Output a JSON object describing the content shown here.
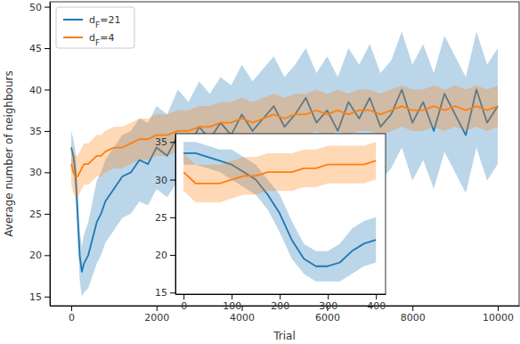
{
  "chart_data": [
    {
      "type": "line",
      "x_label": "Trial",
      "y_label": "Average number of neighbours",
      "x": [
        0,
        50,
        100,
        150,
        200,
        250,
        300,
        400,
        500,
        600,
        700,
        800,
        1000,
        1200,
        1400,
        1600,
        1800,
        2000,
        2250,
        2500,
        2750,
        3000,
        3250,
        3500,
        3750,
        4000,
        4250,
        4500,
        4750,
        5000,
        5250,
        5500,
        5750,
        6000,
        6250,
        6500,
        6750,
        7000,
        7250,
        7500,
        7750,
        8000,
        8250,
        8500,
        8750,
        9000,
        9250,
        9500,
        9750,
        10000
      ],
      "series": [
        {
          "name": "dF=21",
          "color": "#1f77b4",
          "values": [
            33,
            32,
            30,
            25,
            20,
            18,
            19,
            20,
            22,
            24,
            25,
            26.5,
            28,
            29.5,
            30,
            31.5,
            31,
            33,
            32,
            34.5,
            33,
            35.5,
            34,
            36,
            34.5,
            37,
            35,
            36.5,
            38,
            35.5,
            37,
            39,
            36,
            37.5,
            35,
            38.5,
            36.5,
            39,
            35.5,
            37,
            40,
            36,
            38.5,
            35,
            39.5,
            37,
            34.5,
            40,
            36,
            38
          ],
          "error": [
            2,
            2,
            2.5,
            3,
            3,
            3,
            3.5,
            4,
            4.5,
            5,
            5,
            5,
            5,
            5,
            5,
            5,
            5,
            5,
            5,
            5.5,
            5.5,
            5.5,
            5.5,
            5.5,
            6,
            6,
            6,
            6,
            6,
            6,
            6,
            6,
            6,
            6.5,
            6.5,
            6.5,
            6.5,
            6.5,
            6.5,
            6.5,
            7,
            7,
            7,
            7,
            7,
            7,
            7,
            7,
            7,
            7
          ]
        },
        {
          "name": "dF=4",
          "color": "#ff7f0e",
          "values": [
            31,
            30,
            29.5,
            29.5,
            30,
            30.5,
            31,
            31,
            31.5,
            32,
            32,
            32.5,
            33,
            33,
            33.5,
            34,
            34,
            34.5,
            34.5,
            35,
            35,
            35.5,
            35.5,
            36,
            36,
            36.5,
            36,
            36.5,
            37,
            36.5,
            37,
            37,
            37.5,
            37,
            37.5,
            37,
            37.5,
            37.5,
            37,
            37.5,
            38,
            37.5,
            37.5,
            38,
            37.5,
            38,
            37.5,
            38,
            37.5,
            38
          ],
          "error": [
            2.5,
            2.5,
            2.5,
            2.5,
            2.5,
            2.5,
            2.5,
            2.5,
            2.5,
            2.5,
            2.5,
            2.5,
            2.5,
            2.5,
            2.5,
            2.5,
            2.5,
            2.5,
            2.5,
            2.5,
            2.5,
            2.5,
            2.5,
            2.5,
            2.5,
            2.5,
            2.5,
            2.5,
            2.5,
            2.5,
            2.5,
            2.5,
            2.5,
            2.5,
            2.5,
            2.5,
            2.5,
            2.5,
            2.5,
            2.5,
            2.5,
            2.5,
            2.5,
            2.5,
            2.5,
            2.5,
            2.5,
            2.5,
            2.5,
            2.5
          ]
        }
      ],
      "xlim": [
        -500,
        10500
      ],
      "xticks": [
        0,
        2000,
        4000,
        6000,
        8000,
        10000
      ],
      "ylim": [
        13.9,
        50.6
      ],
      "yticks": [
        15,
        20,
        25,
        30,
        35,
        40,
        45,
        50
      ],
      "legend": "upper left",
      "grid": false
    },
    {
      "type": "line",
      "x": [
        0,
        25,
        50,
        75,
        100,
        125,
        150,
        175,
        200,
        225,
        250,
        275,
        300,
        325,
        350,
        375,
        400
      ],
      "series": [
        {
          "name": "dF=21",
          "color": "#1f77b4",
          "values": [
            33.5,
            33.5,
            33,
            32.5,
            32,
            31,
            30,
            28,
            25.5,
            22,
            19.5,
            18.5,
            18.5,
            19,
            20.5,
            21.5,
            22
          ],
          "error": [
            1.5,
            1.5,
            1.5,
            1.5,
            2,
            2,
            2,
            2,
            2.5,
            2.5,
            2,
            2,
            2,
            2.5,
            3,
            3,
            3
          ]
        },
        {
          "name": "dF=4",
          "color": "#ff7f0e",
          "values": [
            31,
            29.5,
            29.5,
            29.5,
            30,
            30.5,
            30.5,
            31,
            31,
            31,
            31.5,
            31.5,
            32,
            32,
            32,
            32,
            32.5
          ],
          "error": [
            2.5,
            2.5,
            2.5,
            2.5,
            2.5,
            2.5,
            2.5,
            2.5,
            2.5,
            2.5,
            2.5,
            2.5,
            2.5,
            2.5,
            2.5,
            2.5,
            2.5
          ]
        }
      ],
      "xlim": [
        -17,
        420
      ],
      "xticks": [
        0,
        100,
        200,
        300,
        400
      ],
      "ylim": [
        14.8,
        36.1
      ],
      "yticks": [
        15,
        20,
        25,
        30,
        35
      ],
      "grid": false
    }
  ]
}
